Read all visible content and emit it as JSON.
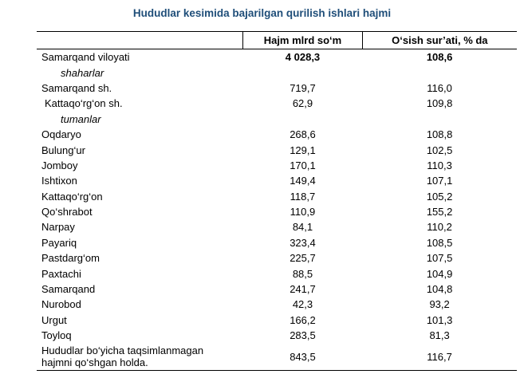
{
  "title": "Hududlar kesimida bajarilgan qurilish ishlari hajmi",
  "table": {
    "headers": [
      "",
      "Hajm mlrd so‘m",
      "O‘sish sur’ati, % da"
    ],
    "total": {
      "name": "Samarqand viloyati",
      "volume": "4 028,3",
      "growth": "108,6"
    },
    "cities_label": "shaharlar",
    "cities": [
      {
        "name": "Samarqand sh.",
        "volume": "719,7",
        "growth": "116,0"
      },
      {
        "name": "Kattaqo‘rg‘on sh.",
        "volume": "62,9",
        "growth": "109,8"
      }
    ],
    "districts_label": "tumanlar",
    "districts": [
      {
        "name": "Oqdaryo",
        "volume": "268,6",
        "growth": "108,8"
      },
      {
        "name": "Bulung‘ur",
        "volume": "129,1",
        "growth": "102,5"
      },
      {
        "name": "Jomboy",
        "volume": "170,1",
        "growth": "110,3"
      },
      {
        "name": "Ishtixon",
        "volume": "149,4",
        "growth": "107,1"
      },
      {
        "name": "Kattaqo‘rg‘on",
        "volume": "118,7",
        "growth": "105,2"
      },
      {
        "name": "Qo‘shrabot",
        "volume": "110,9",
        "growth": "155,2"
      },
      {
        "name": "Narpay",
        "volume": "84,1",
        "growth": "110,2"
      },
      {
        "name": "Payariq",
        "volume": "323,4",
        "growth": "108,5"
      },
      {
        "name": "Pastdarg‘om",
        "volume": "225,7",
        "growth": "107,5"
      },
      {
        "name": "Paxtachi",
        "volume": "88,5",
        "growth": "104,9"
      },
      {
        "name": "Samarqand",
        "volume": "241,7",
        "growth": "104,8"
      },
      {
        "name": "Nurobod",
        "volume": "42,3",
        "growth": "93,2"
      },
      {
        "name": "Urgut",
        "volume": "166,2",
        "growth": "101,3"
      },
      {
        "name": "Toyloq",
        "volume": "283,5",
        "growth": "81,3"
      }
    ],
    "footer": {
      "name_line1": "Hududlar bo‘yicha taqsimlanmagan",
      "name_line2": "hajmni qo‘shgan holda.",
      "volume": "843,5",
      "growth": "116,7"
    }
  }
}
